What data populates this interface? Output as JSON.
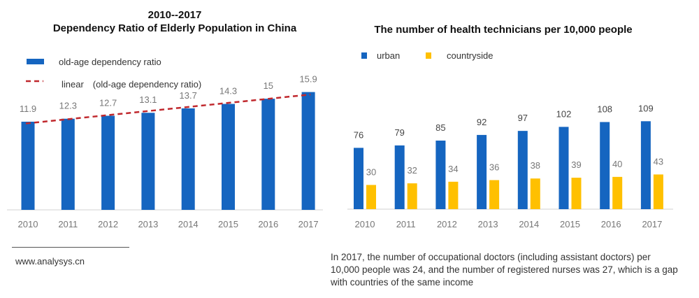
{
  "chart_data": [
    {
      "type": "bar",
      "title_line1": "2010--2017",
      "title_line2": "Dependency Ratio of Elderly Population in China",
      "categories": [
        "2010",
        "2011",
        "2012",
        "2013",
        "2014",
        "2015",
        "2016",
        "2017"
      ],
      "series": [
        {
          "name": "old-age dependency ratio",
          "values": [
            11.9,
            12.3,
            12.7,
            13.1,
            13.7,
            14.3,
            15,
            15.9
          ],
          "color": "#1565C0"
        }
      ],
      "trendline": {
        "name": "linear　(old-age dependency ratio)",
        "type": "linear",
        "color": "#C0282D"
      },
      "ylim": [
        0,
        16.9
      ],
      "grid": false,
      "legend_position": "top-left"
    },
    {
      "type": "bar",
      "title": "The number of health technicians per 10,000 people",
      "categories": [
        "2010",
        "2011",
        "2012",
        "2013",
        "2014",
        "2015",
        "2016",
        "2017"
      ],
      "series": [
        {
          "name": "urban",
          "values": [
            76,
            79,
            85,
            92,
            97,
            102,
            108,
            109
          ],
          "color": "#1565C0"
        },
        {
          "name": "countryside",
          "values": [
            30,
            32,
            34,
            36,
            38,
            39,
            40,
            43
          ],
          "color": "#FFC000"
        }
      ],
      "ylim": [
        0,
        124
      ],
      "grid": false,
      "legend_position": "top-left"
    }
  ],
  "source": "www.analysys.cn",
  "note": "In 2017, the number of occupational doctors (including assistant doctors) per 10,000 people was 24, and the number of registered nurses was 27, which is a gap with countries of the same income"
}
